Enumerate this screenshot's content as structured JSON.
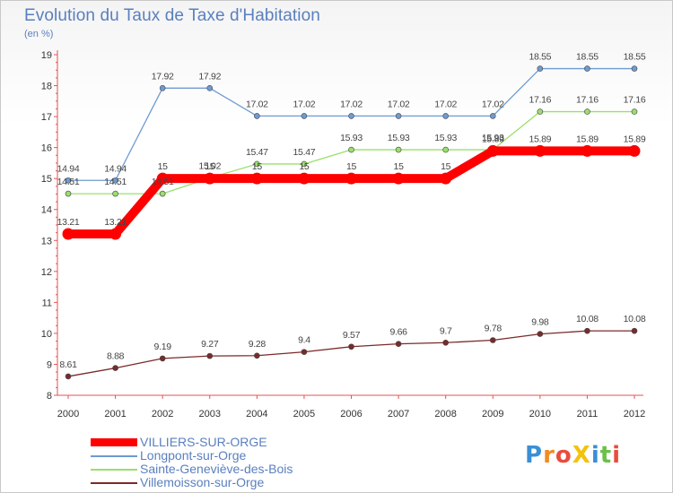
{
  "header": {
    "title": "Evolution du Taux de Taxe d'Habitation",
    "subtitle": "(en %)"
  },
  "logo": {
    "text": "ProXiti"
  },
  "chart_data": {
    "type": "line",
    "title": "Evolution du Taux de Taxe d'Habitation",
    "ylabel": "(en %)",
    "xlabel": "",
    "x": [
      "2000",
      "2001",
      "2002",
      "2003",
      "2004",
      "2005",
      "2006",
      "2007",
      "2008",
      "2009",
      "2010",
      "2011",
      "2012"
    ],
    "ylim": [
      8,
      19
    ],
    "yticks": [
      8,
      9,
      10,
      11,
      12,
      13,
      14,
      15,
      16,
      17,
      18,
      19
    ],
    "grid": false,
    "legend_position": "bottom-left",
    "series": [
      {
        "name": "VILLIERS-SUR-ORGE",
        "color": "#ff0000",
        "values": [
          13.21,
          13.21,
          15,
          15,
          15,
          15,
          15,
          15,
          15,
          15.89,
          15.89,
          15.89,
          15.89
        ],
        "labels": [
          "13.21",
          "13.21",
          "15",
          "15",
          "15",
          "15",
          "15",
          "15",
          "15",
          "15.89",
          "15.89",
          "15.89",
          "15.89"
        ]
      },
      {
        "name": "Longpont-sur-Orge",
        "color": "#6e9bd1",
        "values": [
          14.94,
          14.94,
          17.92,
          17.92,
          17.02,
          17.02,
          17.02,
          17.02,
          17.02,
          17.02,
          18.55,
          18.55,
          18.55
        ],
        "labels": [
          "14.94",
          "14.94",
          "17.92",
          "17.92",
          "17.02",
          "17.02",
          "17.02",
          "17.02",
          "17.02",
          "17.02",
          "18.55",
          "18.55",
          "18.55"
        ]
      },
      {
        "name": "Sainte-Geneviève-des-Bois",
        "color": "#99e06a",
        "values": [
          14.51,
          14.51,
          14.51,
          15.02,
          15.47,
          15.47,
          15.93,
          15.93,
          15.93,
          15.93,
          17.16,
          17.16,
          17.16
        ],
        "labels": [
          "14.51",
          "14.51",
          "14.51",
          "15.02",
          "15.47",
          "15.47",
          "15.93",
          "15.93",
          "15.93",
          "15.93",
          "17.16",
          "17.16",
          "17.16"
        ]
      },
      {
        "name": "Villemoisson-sur-Orge",
        "color": "#7b2a2a",
        "values": [
          8.61,
          8.88,
          9.19,
          9.27,
          9.28,
          9.4,
          9.57,
          9.66,
          9.7,
          9.78,
          9.98,
          10.08,
          10.08
        ],
        "labels": [
          "8.61",
          "8.88",
          "9.19",
          "9.27",
          "9.28",
          "9.4",
          "9.57",
          "9.66",
          "9.7",
          "9.78",
          "9.98",
          "10.08",
          "10.08"
        ]
      }
    ]
  }
}
